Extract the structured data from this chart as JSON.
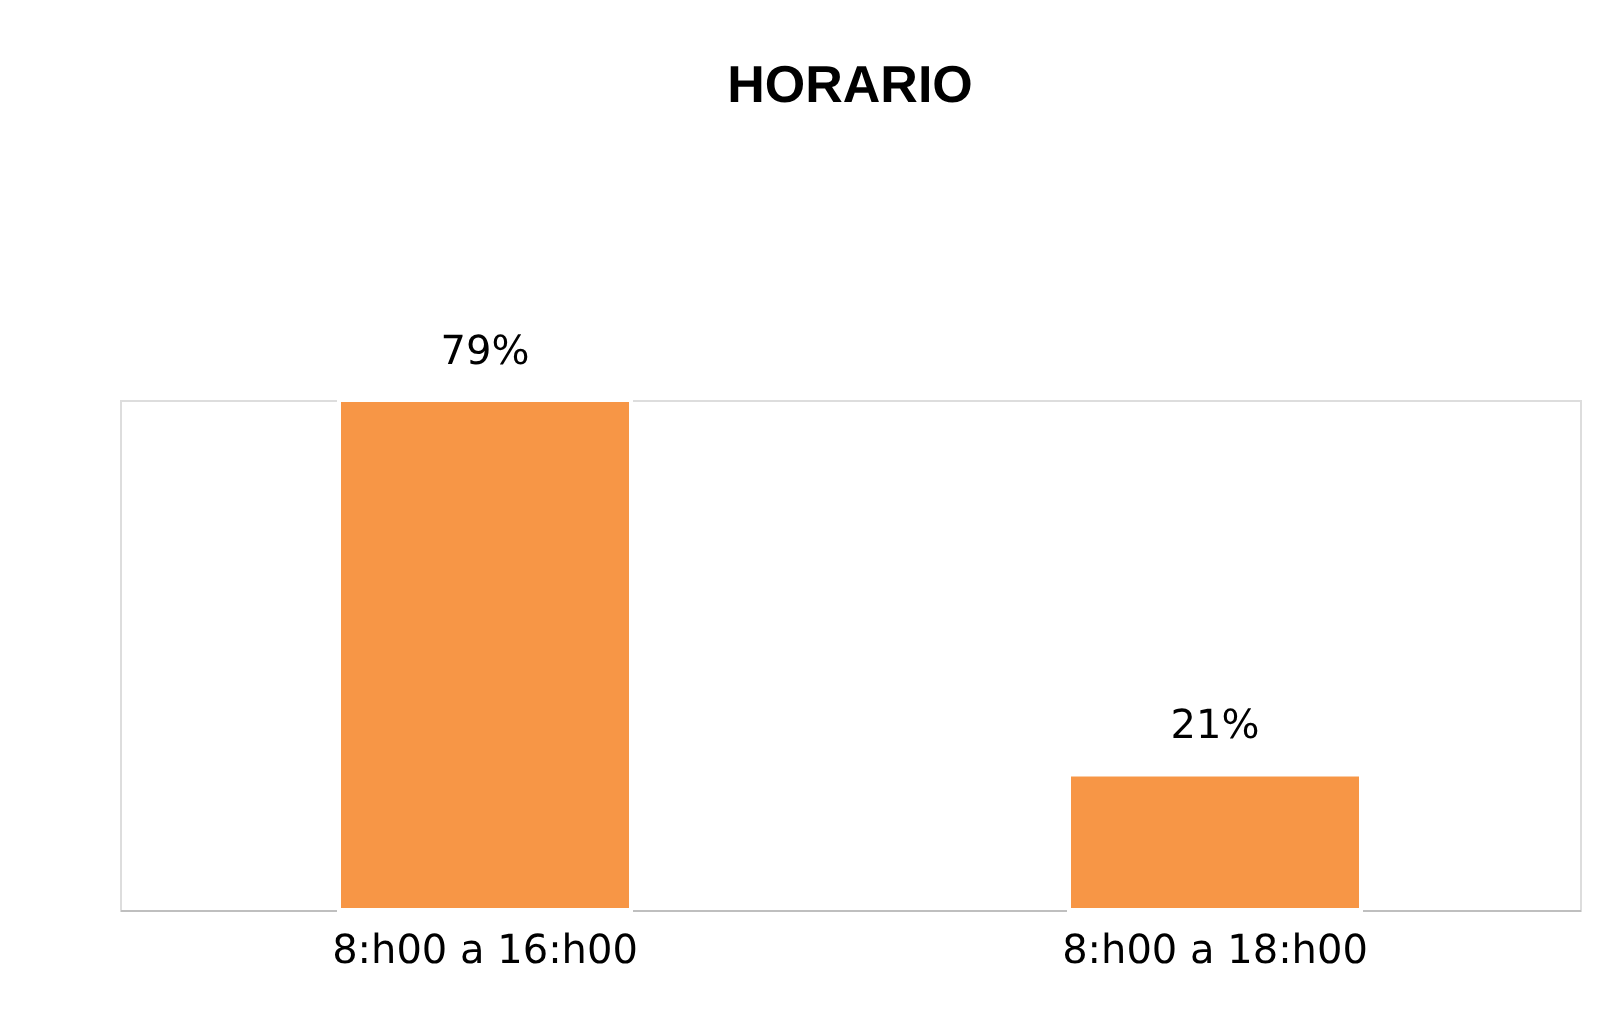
{
  "chart_data": {
    "type": "bar",
    "title": "HORARIO",
    "categories": [
      "8:h00 a 16:h00",
      "8:h00 a 18:h00"
    ],
    "values": [
      79,
      21
    ],
    "value_labels": [
      "79%",
      "21%"
    ],
    "color": "#f79646",
    "grid": false
  }
}
